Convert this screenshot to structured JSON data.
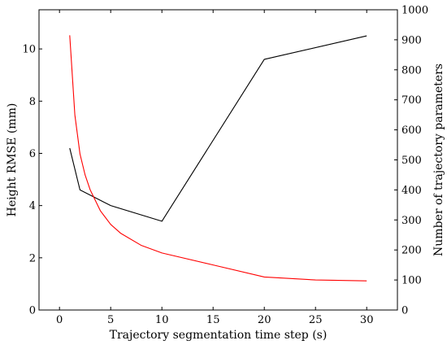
{
  "chart_data": {
    "type": "line",
    "title": "",
    "xlabel": "Trajectory segmentation time step (s)",
    "ylabel_left": "Height RMSE (mm)",
    "ylabel_right": "Number of trajectory parameters",
    "xlim": [
      -2,
      33
    ],
    "ylim_left": [
      0,
      11.5
    ],
    "ylim_right": [
      0,
      1000
    ],
    "xticks": [
      0,
      5,
      10,
      15,
      20,
      25,
      30
    ],
    "yticks_left": [
      0,
      2,
      4,
      6,
      8,
      10
    ],
    "yticks_right": [
      0,
      100,
      200,
      300,
      400,
      500,
      600,
      700,
      800,
      900,
      1000
    ],
    "grid": false,
    "colors": {
      "rmse": "#000000",
      "params": "#ff0000",
      "axis": "#000000"
    },
    "series": [
      {
        "axis": "left",
        "color": "#000000",
        "x": [
          1,
          2,
          5,
          10,
          20,
          30
        ],
        "values": [
          6.2,
          4.6,
          4.0,
          3.4,
          9.6,
          10.5
        ]
      },
      {
        "axis": "right",
        "color": "#ff0000",
        "x": [
          1,
          1.5,
          2,
          2.5,
          3,
          4,
          5,
          6,
          8,
          10,
          15,
          20,
          25,
          30
        ],
        "values": [
          915,
          650,
          520,
          450,
          400,
          330,
          285,
          255,
          215,
          190,
          150,
          110,
          100,
          97
        ]
      }
    ]
  }
}
